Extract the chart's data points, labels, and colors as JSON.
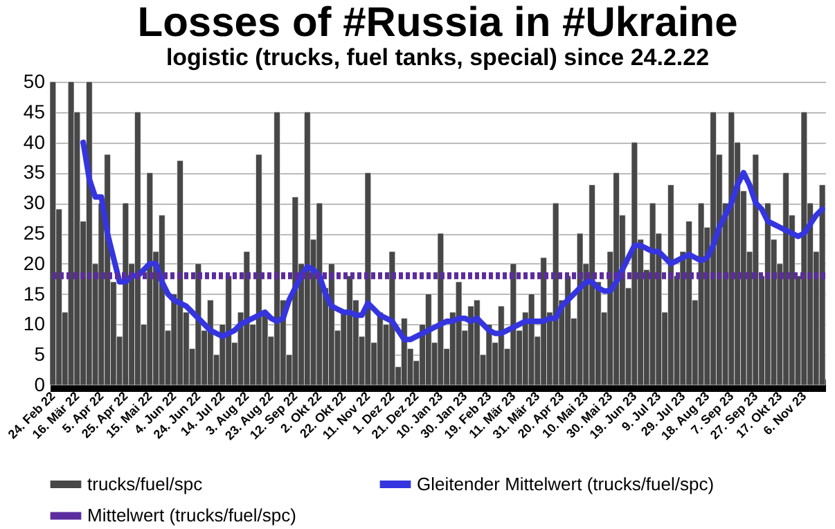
{
  "chart_data": {
    "type": "bar",
    "title": "Losses of #Russia in #Ukraine",
    "subtitle": "logistic (trucks, fuel tanks, special) since 24.2.22",
    "categories": [
      "24. Feb 22",
      null,
      null,
      null,
      "16. Mär 22",
      null,
      null,
      null,
      "5. Apr 22",
      null,
      null,
      null,
      "25. Apr 22",
      null,
      null,
      null,
      "15. Mai 22",
      null,
      null,
      null,
      "4. Jun 22",
      null,
      null,
      null,
      "24. Jun 22",
      null,
      null,
      null,
      "14. Jul 22",
      null,
      null,
      null,
      "3. Aug 22",
      null,
      null,
      null,
      "23. Aug 22",
      null,
      null,
      null,
      "12. Sep 22",
      null,
      null,
      null,
      "2. Okt 22",
      null,
      null,
      null,
      "22. Okt 22",
      null,
      null,
      null,
      "11. Nov 22",
      null,
      null,
      null,
      "1. Dez 22",
      null,
      null,
      null,
      "21. Dez 22",
      null,
      null,
      null,
      "10. Jan 23",
      null,
      null,
      null,
      "30. Jan 23",
      null,
      null,
      null,
      "19. Feb 23",
      null,
      null,
      null,
      "11. Mär 23",
      null,
      null,
      null,
      "31. Mär 23",
      null,
      null,
      null,
      "20. Apr 23",
      null,
      null,
      null,
      "10. Mai 23",
      null,
      null,
      null,
      "30. Mai 23",
      null,
      null,
      null,
      "19. Jun 23",
      null,
      null,
      null,
      "9. Jul 23",
      null,
      null,
      null,
      "29. Jul 23",
      null,
      null,
      null,
      "18. Aug 23",
      null,
      null,
      null,
      "7. Sep 23",
      null,
      null,
      null,
      "27. Sep 23",
      null,
      null,
      null,
      "17. Okt 23",
      null,
      null,
      null,
      "6. Nov 23",
      null,
      null,
      null
    ],
    "series": [
      {
        "name": "trucks/fuel/spc",
        "type": "bar",
        "color": "#474747",
        "values": [
          50,
          29,
          12,
          50,
          45,
          27,
          50,
          20,
          30,
          38,
          17,
          8,
          30,
          20,
          45,
          10,
          35,
          22,
          28,
          9,
          15,
          37,
          12,
          6,
          20,
          9,
          14,
          5,
          10,
          18,
          7,
          12,
          22,
          10,
          38,
          12,
          8,
          45,
          14,
          5,
          31,
          20,
          45,
          24,
          30,
          16,
          20,
          9,
          12,
          18,
          14,
          8,
          35,
          7,
          12,
          10,
          22,
          3,
          11,
          6,
          4,
          10,
          15,
          7,
          25,
          6,
          12,
          17,
          9,
          13,
          14,
          5,
          10,
          7,
          13,
          6,
          20,
          9,
          12,
          15,
          8,
          21,
          12,
          30,
          14,
          18,
          11,
          25,
          20,
          33,
          17,
          12,
          22,
          35,
          28,
          16,
          40,
          24,
          19,
          30,
          25,
          12,
          33,
          18,
          22,
          27,
          14,
          30,
          26,
          45,
          38,
          30,
          45,
          40,
          32,
          22,
          38,
          18,
          30,
          24,
          20,
          35,
          28,
          18,
          45,
          30,
          22,
          33
        ]
      },
      {
        "name": "Gleitender Mittelwert (trucks/fuel/spc)",
        "type": "line",
        "color": "#3535e0",
        "values": [
          null,
          null,
          null,
          null,
          null,
          40,
          34,
          31,
          31,
          25,
          21,
          17,
          17,
          18,
          18,
          19,
          20,
          20,
          17,
          15,
          14,
          13.5,
          13,
          12,
          11,
          10,
          9,
          8.5,
          8,
          8.5,
          9,
          10,
          10.5,
          11,
          11.5,
          12,
          11,
          10.5,
          11,
          14,
          16,
          18,
          19.5,
          19,
          18,
          15,
          13,
          12.5,
          12,
          12,
          11.5,
          11.5,
          13.5,
          12.5,
          11.5,
          11,
          10.5,
          9,
          7.5,
          7.5,
          8,
          8.5,
          9,
          9.5,
          10,
          10.5,
          10.5,
          11,
          11,
          10.5,
          11,
          10,
          9,
          8.5,
          8.5,
          9,
          9.5,
          10,
          10.5,
          10.5,
          10.5,
          10.5,
          11,
          11,
          13,
          14,
          15,
          16,
          17,
          17,
          16,
          15.5,
          15.5,
          17,
          19,
          21,
          23,
          23,
          22.5,
          22,
          22,
          21,
          20,
          20.5,
          21,
          21.5,
          21,
          20.5,
          21,
          23,
          26,
          28,
          30,
          33,
          35,
          33,
          30,
          29,
          27,
          26.5,
          26,
          25.5,
          25,
          24.5,
          25,
          26.5,
          28,
          29
        ]
      }
    ],
    "ref_lines": [
      {
        "axis": "y",
        "value": 18,
        "label": "Mittelwert (trucks/fuel/spc)",
        "color": "#5b2ca0",
        "line_style": "dotted"
      }
    ],
    "ylim": [
      0,
      50
    ],
    "yticks": [
      0,
      5,
      10,
      15,
      20,
      25,
      30,
      35,
      40,
      45,
      50
    ],
    "grid": "y",
    "legend": "bottom"
  }
}
